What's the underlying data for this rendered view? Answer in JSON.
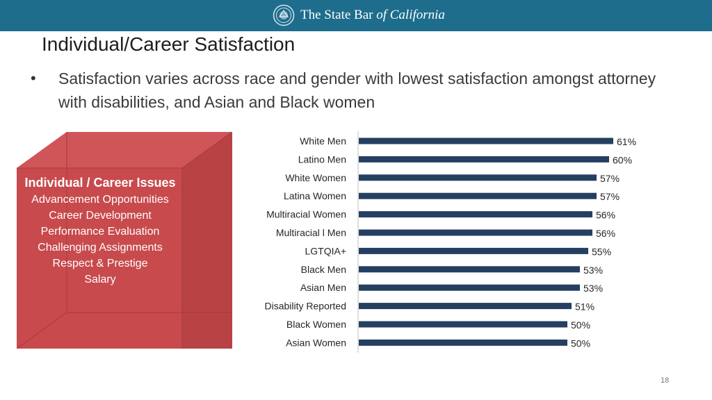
{
  "header": {
    "org_name_part1": "The State Bar",
    "org_name_part2": "of California",
    "seal_icon": "seal-icon",
    "bar_color": "#1e6d8c"
  },
  "slide": {
    "title": "Individual/Career Satisfaction",
    "bullet_marker": "•",
    "bullet_text": "Satisfaction varies across race and gender with lowest satisfaction amongst attorney with disabilities, and  Asian and Black women",
    "page_number": "18"
  },
  "cube": {
    "color": "#c84a4d",
    "heading": "Individual / Career Issues",
    "items": [
      "Advancement Opportunities",
      "Career Development",
      "Performance Evaluation",
      "Challenging Assignments",
      "Respect & Prestige",
      "Salary"
    ]
  },
  "chart_data": {
    "type": "bar",
    "orientation": "horizontal",
    "title": "",
    "xlabel": "",
    "ylabel": "",
    "bar_color": "#243f60",
    "categories": [
      "White Men",
      "Latino Men",
      "White Women",
      "Latina Women",
      "Multiracial Women",
      "Multiracial l Men",
      "LGTQIA+",
      "Black Men",
      "Asian Men",
      "Disability Reported",
      "Black Women",
      "Asian Women"
    ],
    "values": [
      61,
      60,
      57,
      57,
      56,
      56,
      55,
      53,
      53,
      51,
      50,
      50
    ],
    "value_labels": [
      "61%",
      "60%",
      "57%",
      "57%",
      "56%",
      "56%",
      "55%",
      "53%",
      "53%",
      "51%",
      "50%",
      "50%"
    ],
    "xlim": [
      0,
      66
    ],
    "grid": false,
    "legend": "none"
  }
}
